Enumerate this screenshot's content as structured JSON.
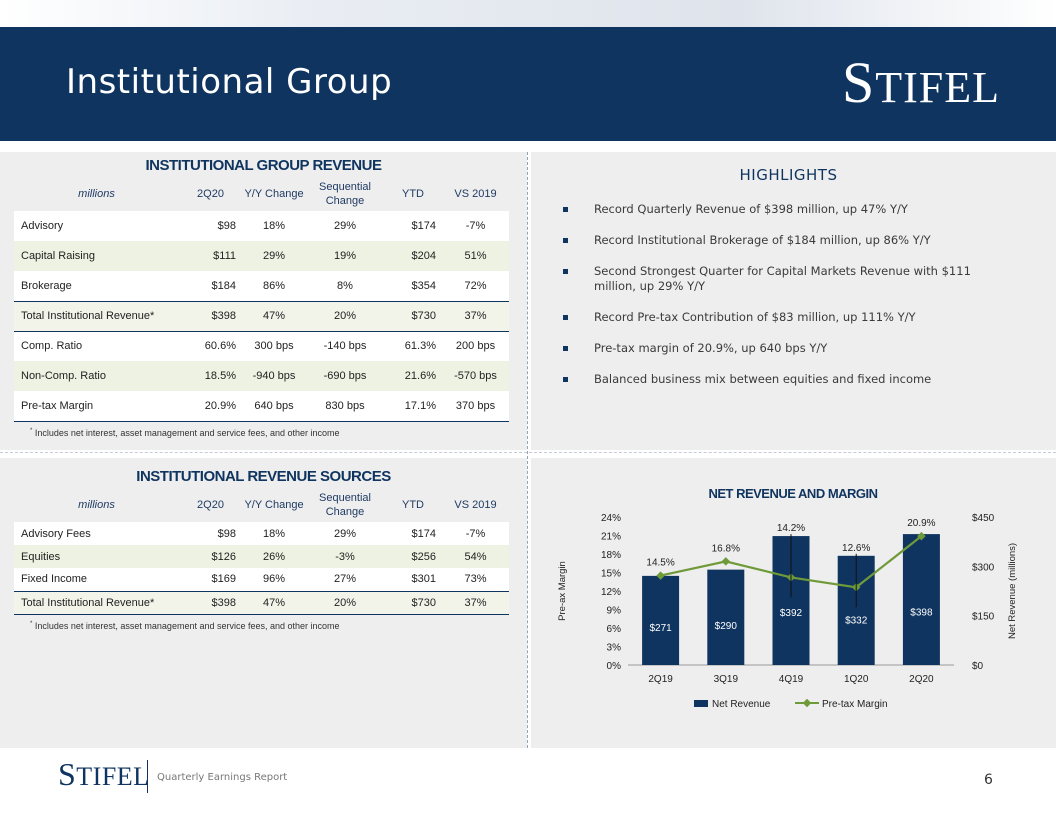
{
  "header": {
    "title": "Institutional Group",
    "logo_first": "S",
    "logo_rest": "TIFEL"
  },
  "revenue_table": {
    "title": "INSTITUTIONAL GROUP REVENUE",
    "columns": [
      "millions",
      "2Q20",
      "Y/Y Change",
      "Sequential Change",
      "YTD",
      "VS 2019"
    ],
    "rows": [
      [
        "Advisory",
        "$98",
        "18%",
        "29%",
        "$174",
        "-7%"
      ],
      [
        "Capital Raising",
        "$111",
        "29%",
        "19%",
        "$204",
        "51%"
      ],
      [
        "Brokerage",
        "$184",
        "86%",
        "8%",
        "$354",
        "72%"
      ],
      [
        "Total Institutional Revenue*",
        "$398",
        "47%",
        "20%",
        "$730",
        "37%"
      ],
      [
        "Comp. Ratio",
        "60.6%",
        "300 bps",
        "-140 bps",
        "61.3%",
        "200 bps"
      ],
      [
        "Non-Comp. Ratio",
        "18.5%",
        "-940 bps",
        "-690 bps",
        "21.6%",
        "-570 bps"
      ],
      [
        "Pre-tax Margin",
        "20.9%",
        "640 bps",
        "830 bps",
        "17.1%",
        "370 bps"
      ]
    ],
    "footnote": "Includes net interest, asset management and service fees, and other income",
    "footnote_mark": "*"
  },
  "sources_table": {
    "title": "INSTITUTIONAL REVENUE SOURCES",
    "columns": [
      "millions",
      "2Q20",
      "Y/Y Change",
      "Sequential Change",
      "YTD",
      "VS 2019"
    ],
    "rows": [
      [
        "Advisory Fees",
        "$98",
        "18%",
        "29%",
        "$174",
        "-7%"
      ],
      [
        "Equities",
        "$126",
        "26%",
        "-3%",
        "$256",
        "54%"
      ],
      [
        "Fixed Income",
        "$169",
        "96%",
        "27%",
        "$301",
        "73%"
      ],
      [
        "Total Institutional Revenue*",
        "$398",
        "47%",
        "20%",
        "$730",
        "37%"
      ]
    ],
    "footnote": "Includes net interest, asset management and service fees, and other income",
    "footnote_mark": "*"
  },
  "highlights": {
    "title": "HIGHLIGHTS",
    "items": [
      "Record Quarterly Revenue of $398 million, up 47% Y/Y",
      "Record Institutional Brokerage of $184 million, up 86% Y/Y",
      "Second Strongest Quarter for Capital Markets Revenue with $111 million, up 29% Y/Y",
      "Record Pre-tax Contribution of $83 million, up 111% Y/Y",
      "Pre-tax margin of 20.9%, up 640 bps Y/Y",
      "Balanced business mix between equities and fixed income"
    ]
  },
  "chart_data": {
    "type": "bar",
    "title": "NET REVENUE AND MARGIN",
    "categories": [
      "2Q19",
      "3Q19",
      "4Q19",
      "1Q20",
      "2Q20"
    ],
    "series": [
      {
        "name": "Net Revenue",
        "type": "bar",
        "axis": "right",
        "values": [
          271,
          290,
          392,
          332,
          398
        ],
        "labels": [
          "$271",
          "$290",
          "$392",
          "$332",
          "$398"
        ]
      },
      {
        "name": "Pre-tax Margin",
        "type": "line",
        "axis": "left",
        "values": [
          14.5,
          16.8,
          14.2,
          12.6,
          20.9
        ],
        "labels": [
          "14.5%",
          "16.8%",
          "14.2%",
          "12.6%",
          "20.9%"
        ]
      }
    ],
    "left_axis": {
      "label": "Pre-ax Margin",
      "min": 0,
      "max": 24,
      "ticks": [
        "0%",
        "3%",
        "6%",
        "9%",
        "12%",
        "15%",
        "18%",
        "21%",
        "24%"
      ]
    },
    "right_axis": {
      "label": "Net Revenue (millions)",
      "min": 0,
      "max": 450,
      "ticks": [
        "$0",
        "$150",
        "$300",
        "$450"
      ]
    },
    "legend": "bottom",
    "colors": {
      "bar": "#0f345f",
      "line": "#6f9a3a"
    }
  },
  "footer": {
    "logo_first": "S",
    "logo_rest": "TIFEL",
    "text": "Quarterly Earnings Report",
    "page": "6"
  }
}
